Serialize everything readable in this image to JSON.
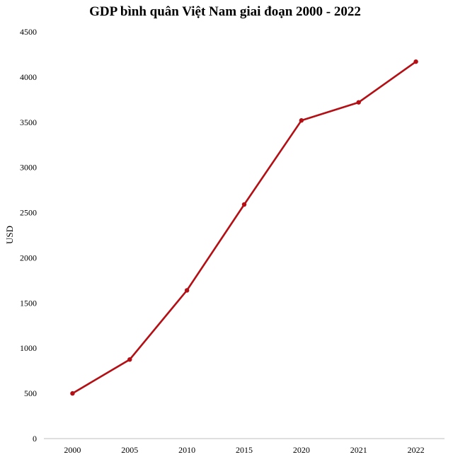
{
  "chart_data": {
    "type": "line",
    "title": "GDP bình quân Việt Nam giai đoạn 2000 - 2022",
    "xlabel": "",
    "ylabel": "USD",
    "categories": [
      "2000",
      "2005",
      "2010",
      "2015",
      "2020",
      "2021",
      "2022"
    ],
    "series": [
      {
        "values": [
          500,
          875,
          1640,
          2590,
          3520,
          3720,
          4170
        ]
      }
    ],
    "ylim": [
      0,
      4500
    ],
    "yticks": [
      0,
      500,
      1000,
      1500,
      2000,
      2500,
      3000,
      3500,
      4000,
      4500
    ],
    "grid": false,
    "legend": "none",
    "line_color": "#b30f14",
    "axis_color": "#bfbfbf"
  }
}
